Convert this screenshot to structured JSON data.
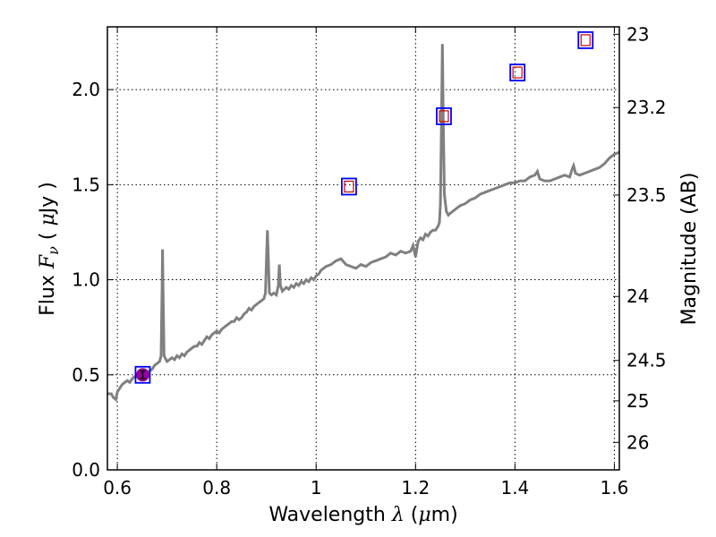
{
  "chart_data": {
    "type": "line",
    "xlabel": "Wavelength  λ (μm)",
    "ylabel": "Flux  F_ν  ( μJy )",
    "ylabel_parts": {
      "pre": "Flux  ",
      "var": "F",
      "sub": "ν",
      "post": "  ( ",
      "unit_mu": "μ",
      "unit_rest": "Jy )"
    },
    "xlabel_parts": {
      "pre": "Wavelength  ",
      "var": "λ",
      "post": " (",
      "unit_mu": "μ",
      "unit_rest": "m)"
    },
    "y2label": "Magnitude (AB)",
    "xlim": [
      0.58,
      1.61
    ],
    "ylim": [
      0.0,
      2.33
    ],
    "grid": true,
    "x_ticks": [
      {
        "value": 0.6,
        "label": "0.6"
      },
      {
        "value": 0.8,
        "label": "0.8"
      },
      {
        "value": 1.0,
        "label": "1"
      },
      {
        "value": 1.2,
        "label": "1.2"
      },
      {
        "value": 1.4,
        "label": "1.4"
      },
      {
        "value": 1.6,
        "label": "1.6"
      }
    ],
    "y_ticks": [
      {
        "value": 0.0,
        "label": "0.0"
      },
      {
        "value": 0.5,
        "label": "0.5"
      },
      {
        "value": 1.0,
        "label": "1.0"
      },
      {
        "value": 1.5,
        "label": "1.5"
      },
      {
        "value": 2.0,
        "label": "2.0"
      }
    ],
    "y2_ticks": [
      {
        "mag": 23.0,
        "label": "23"
      },
      {
        "mag": 23.2,
        "label": "23.2"
      },
      {
        "mag": 23.5,
        "label": "23.5"
      },
      {
        "mag": 24.0,
        "label": "24"
      },
      {
        "mag": 24.5,
        "label": "24.5"
      },
      {
        "mag": 25.0,
        "label": "25"
      },
      {
        "mag": 26.0,
        "label": "26"
      }
    ],
    "spectrum": {
      "color": "#808080",
      "points": [
        [
          0.58,
          0.4
        ],
        [
          0.588,
          0.4
        ],
        [
          0.592,
          0.38
        ],
        [
          0.597,
          0.37
        ],
        [
          0.6,
          0.41
        ],
        [
          0.605,
          0.43
        ],
        [
          0.61,
          0.45
        ],
        [
          0.615,
          0.46
        ],
        [
          0.62,
          0.47
        ],
        [
          0.625,
          0.46
        ],
        [
          0.63,
          0.48
        ],
        [
          0.635,
          0.49
        ],
        [
          0.64,
          0.49
        ],
        [
          0.645,
          0.5
        ],
        [
          0.65,
          0.51
        ],
        [
          0.655,
          0.5
        ],
        [
          0.66,
          0.51
        ],
        [
          0.665,
          0.52
        ],
        [
          0.67,
          0.53
        ],
        [
          0.675,
          0.55
        ],
        [
          0.68,
          0.56
        ],
        [
          0.685,
          0.57
        ],
        [
          0.688,
          0.6
        ],
        [
          0.69,
          0.95
        ],
        [
          0.691,
          1.16
        ],
        [
          0.692,
          0.95
        ],
        [
          0.694,
          0.6
        ],
        [
          0.7,
          0.57
        ],
        [
          0.705,
          0.58
        ],
        [
          0.71,
          0.59
        ],
        [
          0.715,
          0.58
        ],
        [
          0.72,
          0.6
        ],
        [
          0.725,
          0.59
        ],
        [
          0.73,
          0.61
        ],
        [
          0.735,
          0.6
        ],
        [
          0.74,
          0.62
        ],
        [
          0.745,
          0.63
        ],
        [
          0.75,
          0.64
        ],
        [
          0.755,
          0.65
        ],
        [
          0.76,
          0.65
        ],
        [
          0.765,
          0.67
        ],
        [
          0.77,
          0.66
        ],
        [
          0.775,
          0.68
        ],
        [
          0.78,
          0.7
        ],
        [
          0.785,
          0.69
        ],
        [
          0.79,
          0.71
        ],
        [
          0.795,
          0.72
        ],
        [
          0.8,
          0.73
        ],
        [
          0.805,
          0.72
        ],
        [
          0.81,
          0.74
        ],
        [
          0.815,
          0.75
        ],
        [
          0.82,
          0.76
        ],
        [
          0.825,
          0.77
        ],
        [
          0.83,
          0.78
        ],
        [
          0.835,
          0.78
        ],
        [
          0.84,
          0.8
        ],
        [
          0.845,
          0.79
        ],
        [
          0.85,
          0.8
        ],
        [
          0.855,
          0.82
        ],
        [
          0.86,
          0.83
        ],
        [
          0.865,
          0.85
        ],
        [
          0.87,
          0.84
        ],
        [
          0.875,
          0.86
        ],
        [
          0.88,
          0.87
        ],
        [
          0.885,
          0.88
        ],
        [
          0.89,
          0.89
        ],
        [
          0.895,
          0.9
        ],
        [
          0.898,
          0.93
        ],
        [
          0.9,
          1.1
        ],
        [
          0.902,
          1.26
        ],
        [
          0.904,
          1.1
        ],
        [
          0.906,
          0.93
        ],
        [
          0.91,
          0.92
        ],
        [
          0.915,
          0.93
        ],
        [
          0.92,
          0.92
        ],
        [
          0.924,
          0.97
        ],
        [
          0.926,
          1.08
        ],
        [
          0.928,
          0.97
        ],
        [
          0.932,
          0.94
        ],
        [
          0.936,
          0.95
        ],
        [
          0.94,
          0.96
        ],
        [
          0.945,
          0.95
        ],
        [
          0.95,
          0.97
        ],
        [
          0.955,
          0.96
        ],
        [
          0.96,
          0.98
        ],
        [
          0.965,
          0.97
        ],
        [
          0.97,
          0.99
        ],
        [
          0.975,
          0.98
        ],
        [
          0.98,
          1.0
        ],
        [
          0.985,
          0.99
        ],
        [
          0.99,
          1.01
        ],
        [
          0.995,
          1.0
        ],
        [
          1.0,
          1.02
        ],
        [
          1.005,
          1.03
        ],
        [
          1.01,
          1.05
        ],
        [
          1.02,
          1.07
        ],
        [
          1.03,
          1.08
        ],
        [
          1.04,
          1.1
        ],
        [
          1.05,
          1.11
        ],
        [
          1.06,
          1.08
        ],
        [
          1.07,
          1.07
        ],
        [
          1.08,
          1.06
        ],
        [
          1.09,
          1.08
        ],
        [
          1.1,
          1.07
        ],
        [
          1.11,
          1.09
        ],
        [
          1.12,
          1.1
        ],
        [
          1.13,
          1.11
        ],
        [
          1.14,
          1.12
        ],
        [
          1.15,
          1.14
        ],
        [
          1.16,
          1.13
        ],
        [
          1.17,
          1.15
        ],
        [
          1.18,
          1.14
        ],
        [
          1.19,
          1.15
        ],
        [
          1.195,
          1.18
        ],
        [
          1.2,
          1.12
        ],
        [
          1.205,
          1.2
        ],
        [
          1.21,
          1.22
        ],
        [
          1.215,
          1.21
        ],
        [
          1.22,
          1.24
        ],
        [
          1.225,
          1.23
        ],
        [
          1.23,
          1.25
        ],
        [
          1.235,
          1.26
        ],
        [
          1.24,
          1.26
        ],
        [
          1.245,
          1.28
        ],
        [
          1.248,
          1.3
        ],
        [
          1.25,
          1.4
        ],
        [
          1.252,
          1.8
        ],
        [
          1.254,
          2.24
        ],
        [
          1.256,
          1.8
        ],
        [
          1.258,
          1.45
        ],
        [
          1.262,
          1.36
        ],
        [
          1.266,
          1.34
        ],
        [
          1.27,
          1.35
        ],
        [
          1.275,
          1.36
        ],
        [
          1.28,
          1.37
        ],
        [
          1.29,
          1.39
        ],
        [
          1.3,
          1.4
        ],
        [
          1.31,
          1.42
        ],
        [
          1.32,
          1.43
        ],
        [
          1.33,
          1.45
        ],
        [
          1.34,
          1.46
        ],
        [
          1.35,
          1.47
        ],
        [
          1.36,
          1.48
        ],
        [
          1.37,
          1.49
        ],
        [
          1.38,
          1.5
        ],
        [
          1.39,
          1.51
        ],
        [
          1.4,
          1.51
        ],
        [
          1.41,
          1.52
        ],
        [
          1.42,
          1.52
        ],
        [
          1.43,
          1.54
        ],
        [
          1.44,
          1.55
        ],
        [
          1.445,
          1.57
        ],
        [
          1.45,
          1.53
        ],
        [
          1.46,
          1.52
        ],
        [
          1.47,
          1.52
        ],
        [
          1.48,
          1.53
        ],
        [
          1.49,
          1.54
        ],
        [
          1.5,
          1.55
        ],
        [
          1.51,
          1.54
        ],
        [
          1.515,
          1.58
        ],
        [
          1.518,
          1.6
        ],
        [
          1.522,
          1.56
        ],
        [
          1.53,
          1.55
        ],
        [
          1.54,
          1.56
        ],
        [
          1.55,
          1.57
        ],
        [
          1.56,
          1.58
        ],
        [
          1.57,
          1.59
        ],
        [
          1.58,
          1.61
        ],
        [
          1.59,
          1.64
        ],
        [
          1.6,
          1.66
        ],
        [
          1.61,
          1.67
        ]
      ]
    },
    "photometry_blue_squares": {
      "color": "#0000ff",
      "points": [
        [
          0.651,
          0.5
        ],
        [
          1.066,
          1.49
        ],
        [
          1.257,
          1.86
        ],
        [
          1.405,
          2.09
        ],
        [
          1.542,
          2.26
        ]
      ]
    },
    "photometry_red_squares": {
      "color": "#cc0000",
      "points": [
        [
          1.066,
          1.49
        ],
        [
          1.257,
          1.86
        ],
        [
          1.405,
          2.09
        ],
        [
          1.542,
          2.26
        ]
      ]
    },
    "observed_point": {
      "color": "#990099",
      "x": 0.651,
      "y": 0.5,
      "yerr": 0.02
    }
  }
}
